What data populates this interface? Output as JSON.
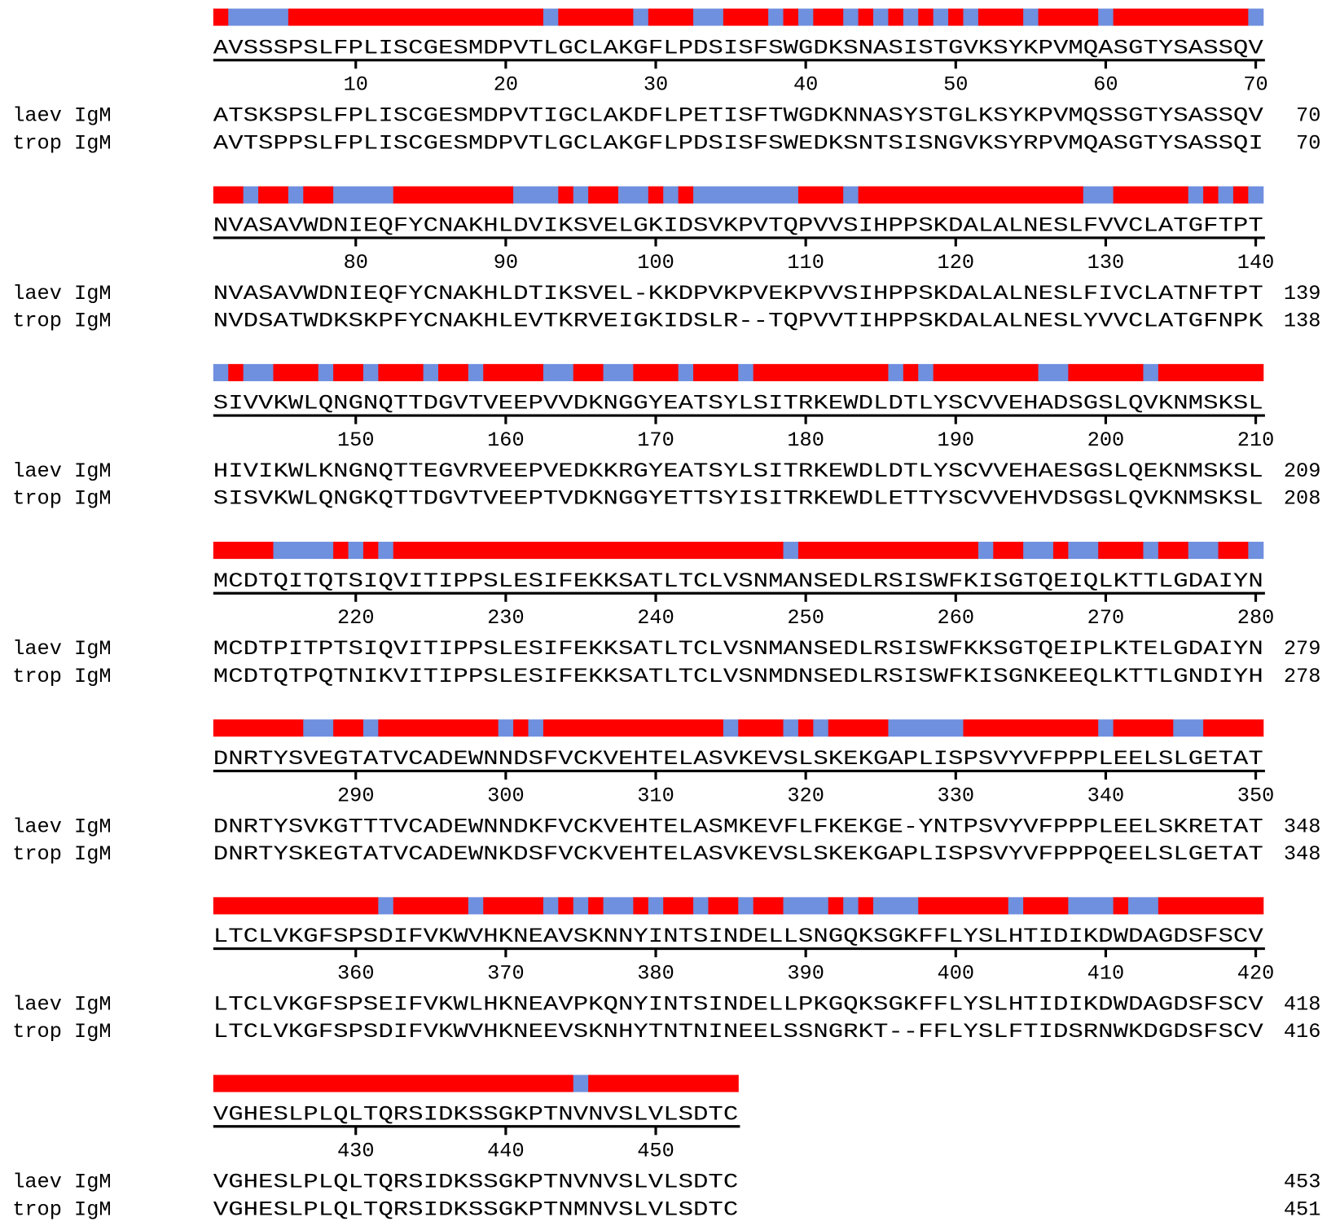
{
  "blocks": [
    {
      "consensus": "AVSSSPSLFPLISCGESMDPVTLGCLAKGFLPDSISFSWGDKSNASISTGVKSYKPVMQASGTYSASSQV",
      "ticks": [
        10,
        20,
        30,
        40,
        50,
        60,
        70
      ],
      "rows": [
        {
          "label": "laev IgM",
          "seq": "ATSKSPSLFPLISCGESMDPVTIGCLAKDFLPETISFTWGDKNNASYSTGLKSYKPVMQSSGTYSASSQV",
          "end": 70
        },
        {
          "label": "trop IgM",
          "seq": "AVTSPPSLFPLISCGESMDPVTLGCLAKGFLPDSISFSWEDKSNTSISNGVKSYRPVMQASGTYSASSQI",
          "end": 70
        }
      ]
    },
    {
      "consensus": "NVASAVWDNIEQFYCNAKHLDVIKSVELGKIDSVKPVTQPVVSIHPPSKDALALNESLFVVCLATGFTPT",
      "ticks": [
        80,
        90,
        100,
        110,
        120,
        130,
        140
      ],
      "rows": [
        {
          "label": "laev IgM",
          "seq": "NVASAVWDNIEQFYCNAKHLDTIKSVEL-KKDPVKPVEKPVVSIHPPSKDALALNESLFIVCLATNFTPT",
          "end": 139
        },
        {
          "label": "trop IgM",
          "seq": "NVDSATWDKSKPFYCNAKHLEVTKRVEIGKIDSLR--TQPVVTIHPPSKDALALNESLYVVCLATGFNPK",
          "end": 138
        }
      ]
    },
    {
      "consensus": "SIVVKWLQNGNQTTDGVTVEEPVVDKNGGYEATSYLSITRKEWDLDTLYSCVVEHADSGSLQVKNMSKSL",
      "ticks": [
        150,
        160,
        170,
        180,
        190,
        200,
        210
      ],
      "rows": [
        {
          "label": "laev IgM",
          "seq": "HIVIKWLKNGNQTTEGVRVEEPVEDKKRGYEATSYLSITRKEWDLDTLYSCVVEHAESGSLQEKNMSKSL",
          "end": 209
        },
        {
          "label": "trop IgM",
          "seq": "SISVKWLQNGKQTTDGVTVEEPTVDKNGGYETTSYISITRKEWDLETTYSCVVEHVDSGSLQVKNMSKSL",
          "end": 208
        }
      ]
    },
    {
      "consensus": "MCDTQITQTSIQVITIPPSLESIFEKKSATLTCLVSNMANSEDLRSISWFKISGTQEIQLKTTLGDAIYN",
      "ticks": [
        220,
        230,
        240,
        250,
        260,
        270,
        280
      ],
      "rows": [
        {
          "label": "laev IgM",
          "seq": "MCDTPITPTSIQVITIPPSLESIFEKKSATLTCLVSNMANSEDLRSISWFKKSGTQEIPLKTELGDAIYN",
          "end": 279
        },
        {
          "label": "trop IgM",
          "seq": "MCDTQTPQTNIKVITIPPSLESIFEKKSATLTCLVSNMDNSEDLRSISWFKISGNKEEQLKTTLGNDIYH",
          "end": 278
        }
      ]
    },
    {
      "consensus": "DNRTYSVEGTATVCADEWNNDSFVCKVEHTELASVKEVSLSKEKGAPLISPSVYVFPPPLEELSLGETAT",
      "ticks": [
        290,
        300,
        310,
        320,
        330,
        340,
        350
      ],
      "rows": [
        {
          "label": "laev IgM",
          "seq": "DNRTYSVKGTTTVCADEWNNDKFVCKVEHTELASMKEVFLFKEKGE-YNTPSVYVFPPPLEELSKRETAT",
          "end": 348
        },
        {
          "label": "trop IgM",
          "seq": "DNRTYSKEGTATVCADEWNKDSFVCKVEHTELASVKEVSLSKEKGAPLISPSVYVFPPPQEELSLGETAT",
          "end": 348
        }
      ]
    },
    {
      "consensus": "LTCLVKGFSPSDIFVKWVHKNEAVSKNNYINTSINDELLSNGQKSGKFFLYSLHTIDIKDWDAGDSFSCV",
      "ticks": [
        360,
        370,
        380,
        390,
        400,
        410,
        420
      ],
      "rows": [
        {
          "label": "laev IgM",
          "seq": "LTCLVKGFSPSEIFVKWLHKNEAVPKQNYINTSINDELLPKGQKSGKFFLYSLHTIDIKDWDAGDSFSCV",
          "end": 418
        },
        {
          "label": "trop IgM",
          "seq": "LTCLVKGFSPSDIFVKWVHKNEEVSKNHYTNTNINEELSSNGRKT--FFLYSLFTIDSRNWKDGDSFSCV",
          "end": 416
        }
      ]
    },
    {
      "consensus": "VGHESLPLQLTQRSIDKSSGKPTNVNVSLVLSDTC",
      "ticks": [
        430,
        440,
        450
      ],
      "rows": [
        {
          "label": "laev IgM",
          "seq": "VGHESLPLQLTQRSIDKSSGKPTNVNVSLVLSDTC",
          "end": 453
        },
        {
          "label": "trop IgM",
          "seq": "VGHESLPLQLTQRSIDKSSGKPTNMNVSLVLSDTC",
          "end": 451
        }
      ]
    }
  ]
}
